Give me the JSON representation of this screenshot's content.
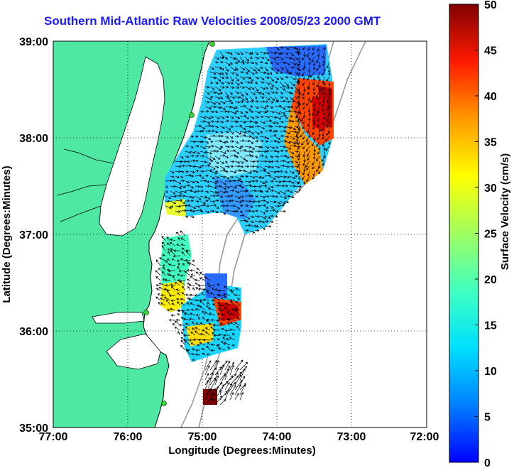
{
  "title": "Southern Mid-Atlantic Raw Velocities 2008/05/23 2000 GMT",
  "xlabel": "Longitude (Degrees:Minutes)",
  "ylabel": "Latitude (Degrees:Minutes)",
  "x_ticks": [
    "77:00",
    "76:00",
    "75:00",
    "74:00",
    "73:00",
    "72:00"
  ],
  "y_ticks": [
    "39:00",
    "38:00",
    "37:00",
    "36:00",
    "35:00"
  ],
  "colorbar": {
    "label": "Surface Velocity (cm/s)",
    "ticks": [
      "50",
      "45",
      "40",
      "35",
      "30",
      "25",
      "20",
      "15",
      "10",
      "5",
      "0"
    ],
    "range": [
      0,
      50
    ],
    "colormap": "jet"
  },
  "colors": {
    "land": "#4fe8a2",
    "title": "#1a1aff",
    "coast": "#000000",
    "bathymetry": "#9a9a9a",
    "station": "#33dd33"
  },
  "extent": {
    "lon": [
      -77,
      -72
    ],
    "lat": [
      35,
      39
    ]
  }
}
